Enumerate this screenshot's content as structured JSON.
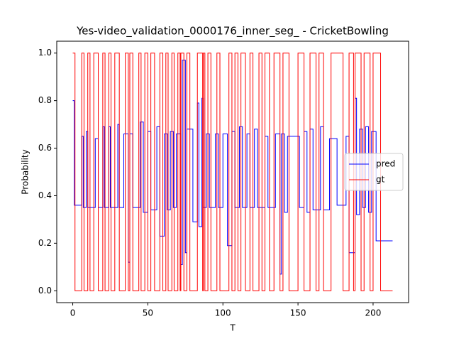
{
  "chart_data": {
    "type": "step",
    "title": "Yes-video_validation_0000176_inner_seg_ - CricketBowling",
    "x_label": "T",
    "y_label": "Probability",
    "xlim": [
      -10.65,
      223.65
    ],
    "ylim": [
      -0.05,
      1.05
    ],
    "xticks": [
      0,
      50,
      100,
      150,
      200
    ],
    "yticks": [
      {
        "value": 0,
        "label": "0.0"
      },
      {
        "value": 0.2,
        "label": "0.2"
      },
      {
        "value": 0.4,
        "label": "0.4"
      },
      {
        "value": 0.6,
        "label": "0.6"
      },
      {
        "value": 0.8,
        "label": "0.8"
      },
      {
        "value": 1,
        "label": "1.0"
      }
    ],
    "legend": "center right",
    "series": [
      {
        "name": "pred",
        "color": "#0000ff",
        "x": [
          0,
          1,
          6,
          7,
          9,
          10,
          15,
          17,
          20,
          21,
          24,
          25,
          30,
          31,
          34,
          37,
          38,
          40,
          45,
          47,
          50,
          52,
          56,
          58,
          61,
          63,
          65,
          67,
          69,
          72,
          73,
          75,
          76,
          80,
          83,
          84,
          86,
          87,
          89,
          91,
          95,
          97,
          100,
          103,
          106,
          108,
          111,
          113,
          116,
          118,
          121,
          123,
          128,
          130,
          135,
          138,
          139,
          141,
          143,
          151,
          154,
          156,
          158,
          160,
          165,
          167,
          171,
          176,
          182,
          184,
          188,
          189,
          191,
          193,
          195,
          197,
          199,
          202,
          213
        ],
        "values": [
          0.8,
          0.36,
          0.65,
          0.35,
          0.67,
          0.35,
          0.64,
          0.35,
          0.69,
          0.35,
          0.69,
          0.35,
          0.7,
          0.35,
          0.66,
          0.12,
          0.66,
          0.35,
          0.71,
          0.33,
          0.67,
          0.34,
          0.69,
          0.23,
          0.66,
          0.34,
          0.67,
          0.35,
          0.66,
          0.11,
          0.97,
          0.16,
          0.68,
          0.29,
          0.79,
          0.27,
          0.81,
          0.35,
          0.66,
          0.35,
          0.66,
          0.35,
          0.66,
          0.19,
          0.67,
          0.35,
          0.69,
          0.35,
          0.66,
          0.35,
          0.68,
          0.35,
          0.65,
          0.35,
          0.66,
          0.07,
          0.66,
          0.33,
          0.65,
          0.35,
          0.67,
          0.33,
          0.68,
          0.34,
          0.69,
          0.34,
          0.64,
          0.36,
          0.65,
          0.16,
          0.81,
          0.32,
          0.68,
          0.35,
          0.69,
          0.33,
          0.67,
          0.21,
          0.21
        ]
      },
      {
        "name": "gt",
        "color": "#ff0000",
        "x": [
          0,
          1.5,
          6,
          7.5,
          10,
          11.5,
          14,
          17,
          20,
          21.5,
          24,
          25.5,
          28,
          31,
          35,
          37,
          38,
          40,
          44,
          45.5,
          48,
          50,
          52,
          54.5,
          58,
          60,
          62,
          63.5,
          66,
          67.5,
          70,
          71.5,
          72,
          74,
          76,
          78,
          83,
          86.5,
          87,
          88,
          90,
          92,
          96,
          98,
          104,
          106,
          108,
          110,
          112,
          115,
          118,
          120,
          124,
          126,
          128,
          131,
          134,
          138,
          140,
          144,
          150,
          154,
          158,
          162,
          164,
          167,
          172,
          180,
          184,
          187,
          188,
          192,
          194,
          198,
          200,
          205,
          213
        ],
        "values": [
          1,
          0,
          1,
          0,
          1,
          0,
          1,
          0,
          1,
          0,
          1,
          0,
          1,
          0,
          1,
          0,
          1,
          0,
          1,
          0,
          1,
          0,
          1,
          0,
          1,
          0,
          1,
          0,
          1,
          0,
          1,
          0,
          1,
          0,
          1,
          0,
          1,
          0,
          1,
          0,
          1,
          0,
          1,
          0,
          1,
          0,
          1,
          0,
          1,
          0,
          1,
          0,
          1,
          0,
          1,
          0,
          1,
          0,
          1,
          0,
          1,
          0,
          1,
          0,
          1,
          0,
          1,
          0,
          1,
          0,
          1,
          0,
          1,
          0,
          1,
          0,
          0
        ]
      }
    ]
  }
}
